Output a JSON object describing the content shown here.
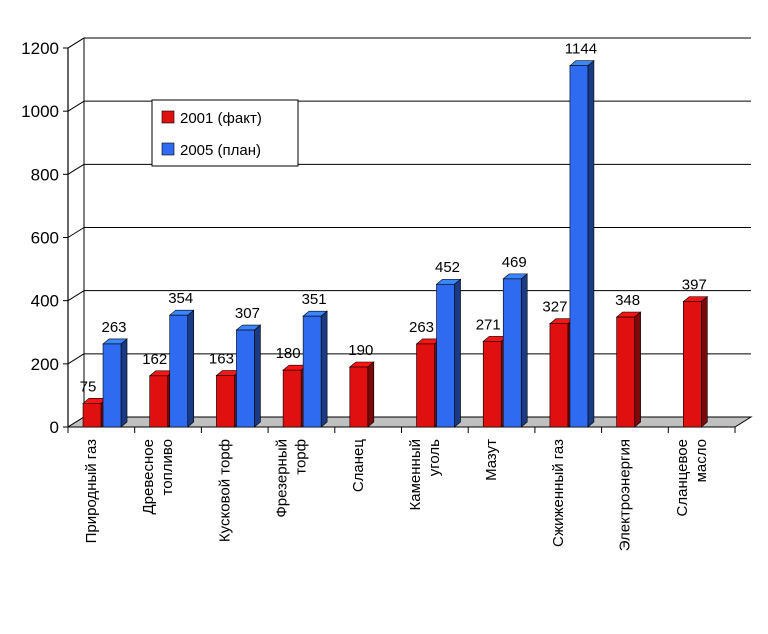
{
  "chart_data": {
    "type": "bar",
    "title": "",
    "xlabel": "",
    "ylabel": "",
    "ylim": [
      0,
      1200
    ],
    "yticks": [
      0,
      200,
      400,
      600,
      800,
      1000,
      1200
    ],
    "grid": true,
    "legend_position": "upper-left",
    "categories": [
      [
        "Природный газ"
      ],
      [
        "Древесное",
        "топливо"
      ],
      [
        "Кусковой торф"
      ],
      [
        "Фрезерный",
        "торф"
      ],
      [
        "Сланец"
      ],
      [
        "Каменный",
        "уголь"
      ],
      [
        "Мазут"
      ],
      [
        "Сжиженный газ"
      ],
      [
        "Электроэнергия"
      ],
      [
        "Сланцевое",
        "масло"
      ]
    ],
    "series": [
      {
        "name": "2001 (факт)",
        "color": "#e01010",
        "values": [
          75,
          162,
          163,
          180,
          190,
          263,
          271,
          327,
          348,
          397
        ],
        "labels": [
          "75",
          "162",
          "163",
          "180",
          "190",
          "263",
          "271",
          "327",
          "348",
          "397"
        ]
      },
      {
        "name": "2005 (план)",
        "color": "#2f6bf0",
        "values": [
          263,
          354,
          307,
          351,
          null,
          452,
          469,
          1144,
          null,
          null
        ],
        "labels": [
          "263",
          "354",
          "307",
          "351",
          "",
          "452",
          "469",
          "1144",
          "",
          ""
        ]
      }
    ]
  }
}
